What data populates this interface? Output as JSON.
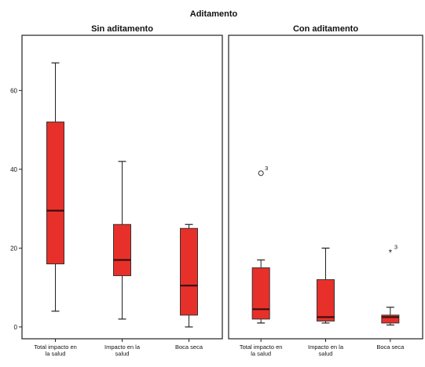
{
  "chart_data": {
    "type": "boxplot",
    "title": "Aditamento",
    "xlabel": "",
    "ylabel": "",
    "ylim": [
      -3,
      74
    ],
    "yticks": [
      0,
      20,
      40,
      60
    ],
    "grid": false,
    "legend": "none",
    "box_color": "#e8302a",
    "panels": [
      {
        "title": "Sin aditamento",
        "categories": [
          "Total impacto en la salud",
          "Impacto en la salud",
          "Boca seca"
        ],
        "category_lines": [
          [
            "Total impacto en",
            "la salud"
          ],
          [
            "Impacto en la",
            "salud"
          ],
          [
            "Boca seca"
          ]
        ],
        "boxes": [
          {
            "min": 4,
            "q1": 16,
            "median": 29.5,
            "q3": 52,
            "max": 67
          },
          {
            "min": 2,
            "q1": 13,
            "median": 17,
            "q3": 26,
            "max": 42
          },
          {
            "min": 0,
            "q1": 3,
            "median": 10.5,
            "q3": 25,
            "max": 26
          }
        ],
        "outliers": []
      },
      {
        "title": "Con aditamento",
        "categories": [
          "Total impacto en la salud",
          "Impacto en la salud",
          "Boca seca"
        ],
        "category_lines": [
          [
            "Total impacto en",
            "la salud"
          ],
          [
            "Impacto en la",
            "salud"
          ],
          [
            "Boca seca"
          ]
        ],
        "boxes": [
          {
            "min": 1,
            "q1": 2,
            "median": 4.5,
            "q3": 15,
            "max": 17
          },
          {
            "min": 1,
            "q1": 1.5,
            "median": 2.5,
            "q3": 12,
            "max": 20
          },
          {
            "min": 0.5,
            "q1": 1,
            "median": 2.5,
            "q3": 3,
            "max": 5
          }
        ],
        "outliers": [
          {
            "category": 0,
            "value": 39,
            "marker": "o",
            "label": "3"
          },
          {
            "category": 2,
            "value": 19,
            "marker": "*",
            "label": "3"
          }
        ]
      }
    ]
  }
}
